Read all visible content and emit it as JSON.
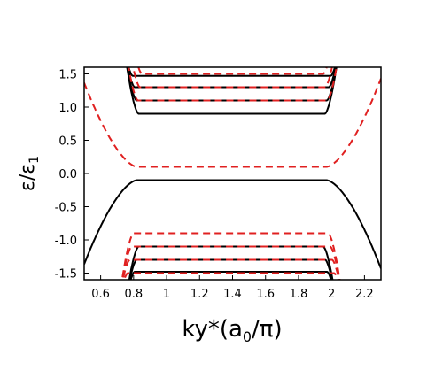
{
  "chart_data": {
    "type": "line",
    "title": "",
    "xlabel_main": "ky*(a",
    "xlabel_sub": "0",
    "xlabel_tail": "/π)",
    "ylabel_main": "ε/ε",
    "ylabel_sub": "1",
    "xlim": [
      0.5,
      2.3
    ],
    "ylim": [
      -1.6,
      1.6
    ],
    "x_ticks": [
      0.6,
      0.8,
      1.0,
      1.2,
      1.4,
      1.6,
      1.8,
      2.0,
      2.2
    ],
    "x_tick_labels": [
      "0.6",
      "0.8",
      "1",
      "1.2",
      "1.4",
      "1.6",
      "1.8",
      "2",
      "2.2"
    ],
    "y_ticks": [
      1.5,
      1.0,
      0.5,
      0.0,
      -0.5,
      -1.0,
      -1.5
    ],
    "y_tick_labels": [
      "1.5",
      "1.0",
      "0.5",
      "0.0",
      "-0.5",
      "-1.0",
      "-1.5"
    ],
    "grid": false,
    "series_styles": [
      {
        "color": "#000000",
        "dash": "solid",
        "width": 2
      },
      {
        "color": "#e02020",
        "dash": "dashed",
        "width": 2
      }
    ],
    "series": [
      {
        "style": 0,
        "levels": [
          0.9,
          1.1,
          1.3,
          1.47
        ],
        "left_edge": 0.83,
        "right_edge": 1.96,
        "sign": 1
      },
      {
        "style": 0,
        "levels": [
          -0.1
        ],
        "left_edge": 0.82,
        "right_edge": 1.97,
        "sign": -1,
        "spread": 0.19
      },
      {
        "style": 0,
        "levels": [
          -1.1,
          -1.3,
          -1.48
        ],
        "left_edge": 0.83,
        "right_edge": 1.95,
        "sign": -1
      },
      {
        "style": 1,
        "levels": [
          1.5,
          1.3,
          1.1
        ],
        "left_edge": 0.85,
        "right_edge": 1.95,
        "sign": 1
      },
      {
        "style": 1,
        "levels": [
          0.1
        ],
        "left_edge": 0.82,
        "right_edge": 1.97,
        "sign": 1,
        "spread": 0.19
      },
      {
        "style": 1,
        "levels": [
          -0.9,
          -1.1,
          -1.3,
          -1.5
        ],
        "left_edge": 0.8,
        "right_edge": 1.98,
        "sign": -1
      }
    ]
  }
}
